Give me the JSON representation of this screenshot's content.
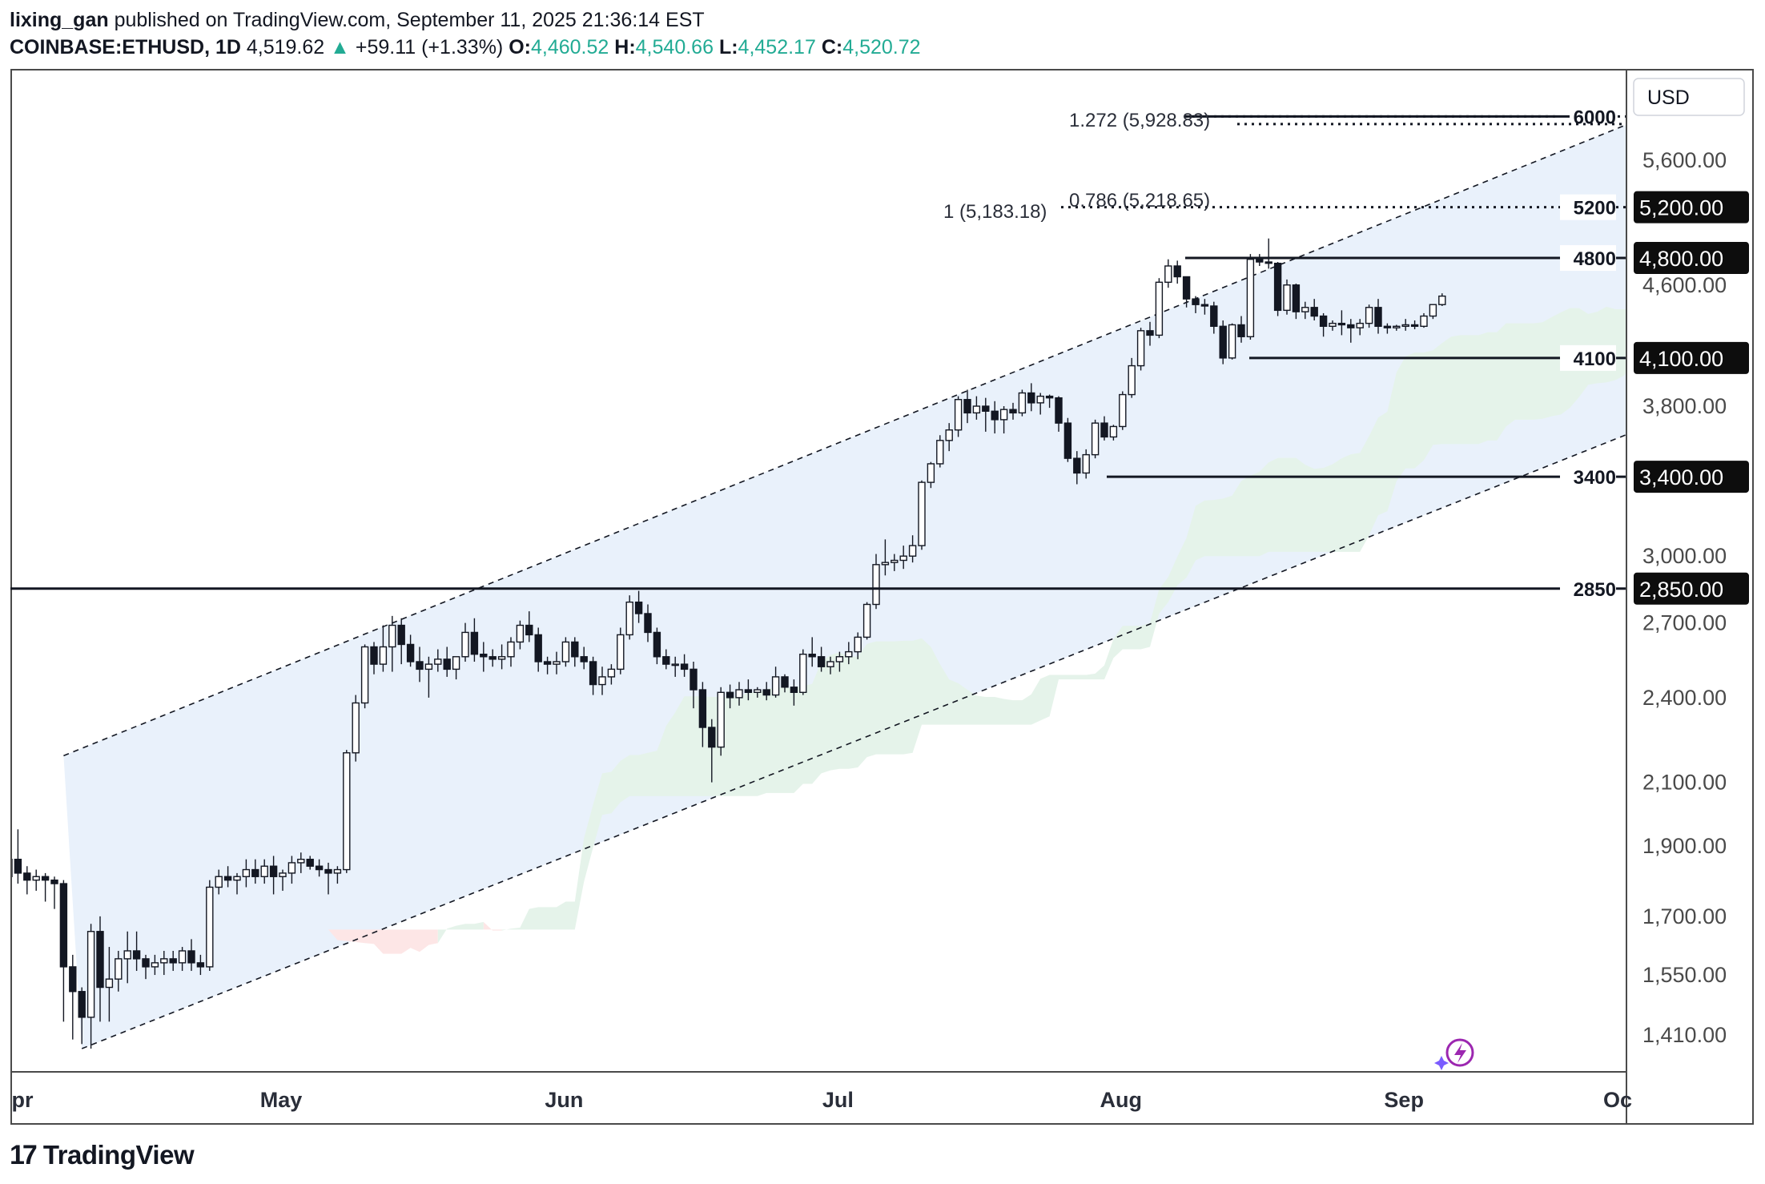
{
  "header": {
    "author": "lixing_gan",
    "published": "published on TradingView.com, September 11, 2025 21:36:14 EST",
    "symbol": "COINBASE:ETHUSD, 1D",
    "last": "4,519.62",
    "change_arrow": "▲",
    "change": "+59.11 (+1.33%)",
    "o_label": "O:",
    "o_value": "4,460.52",
    "h_label": "H:",
    "h_value": "4,540.66",
    "l_label": "L:",
    "l_value": "4,452.17",
    "c_label": "C:",
    "c_value": "4,520.72"
  },
  "footer": {
    "brand": "TradingView",
    "logo_icon": "tradingview-logo-icon"
  },
  "colors": {
    "up": "#22ab94",
    "candle_up_fill": "#ffffff",
    "candle_down_fill": "#131722",
    "channel_fill": "#e8f0fb",
    "cloud_bear": "#fde6e6",
    "cloud_bull": "#e5f3ea",
    "badge_bg": "#0d0d0d",
    "text": "#131722"
  },
  "chart_data": {
    "type": "candlestick",
    "symbol": "COINBASE:ETHUSD",
    "interval": "1D",
    "currency_label": "USD",
    "y_axis_ticks": [
      "5,600.00",
      "4,600.00",
      "3,800.00",
      "3,000.00",
      "2,700.00",
      "2,400.00",
      "2,100.00",
      "1,900.00",
      "1,700.00",
      "1,550.00",
      "1,410.00"
    ],
    "x_axis_ticks": [
      "pr",
      "May",
      "Jun",
      "Jul",
      "Aug",
      "Sep",
      "Oc"
    ],
    "horizontal_levels": [
      {
        "value": 6000,
        "label": "6000",
        "style": "dotted"
      },
      {
        "value": 5200,
        "label": "5200",
        "style": "dotted",
        "badge": "5,200.00"
      },
      {
        "value": 4800,
        "label": "4800",
        "style": "solid",
        "badge": "4,800.00"
      },
      {
        "value": 4100,
        "label": "4100",
        "style": "solid",
        "badge": "4,100.00"
      },
      {
        "value": 3400,
        "label": "3400",
        "style": "solid",
        "badge": "3,400.00"
      },
      {
        "value": 2850,
        "label": "2850",
        "style": "solid",
        "badge": "2,850.00"
      }
    ],
    "fib_labels": [
      {
        "text": "1.272 (5,928.83)",
        "value": 5928.83
      },
      {
        "text": "1 (5,183.18)",
        "value": 5183.18
      },
      {
        "text": "0.786 (5,218.65)",
        "value": 5218.65
      }
    ],
    "channel": {
      "upper": [
        [
          "Apr 7",
          2190
        ],
        [
          "Sep 26",
          5950
        ]
      ],
      "lower": [
        [
          "Apr 9",
          1380
        ],
        [
          "Sep 26",
          3650
        ]
      ]
    },
    "candles": [
      [
        1810,
        1870,
        1770,
        1860
      ],
      [
        1860,
        1950,
        1790,
        1820
      ],
      [
        1820,
        1840,
        1760,
        1800
      ],
      [
        1800,
        1830,
        1770,
        1810
      ],
      [
        1810,
        1820,
        1740,
        1800
      ],
      [
        1800,
        1810,
        1720,
        1790
      ],
      [
        1790,
        1800,
        1440,
        1570
      ],
      [
        1570,
        1600,
        1400,
        1510
      ],
      [
        1510,
        1520,
        1390,
        1450
      ],
      [
        1450,
        1680,
        1380,
        1660
      ],
      [
        1660,
        1700,
        1440,
        1520
      ],
      [
        1520,
        1620,
        1440,
        1540
      ],
      [
        1540,
        1610,
        1510,
        1590
      ],
      [
        1590,
        1660,
        1530,
        1610
      ],
      [
        1610,
        1660,
        1560,
        1590
      ],
      [
        1590,
        1600,
        1540,
        1570
      ],
      [
        1570,
        1600,
        1550,
        1580
      ],
      [
        1580,
        1610,
        1550,
        1590
      ],
      [
        1590,
        1610,
        1560,
        1580
      ],
      [
        1580,
        1620,
        1560,
        1610
      ],
      [
        1610,
        1640,
        1560,
        1580
      ],
      [
        1580,
        1600,
        1550,
        1570
      ],
      [
        1570,
        1800,
        1560,
        1780
      ],
      [
        1780,
        1830,
        1760,
        1810
      ],
      [
        1810,
        1840,
        1780,
        1800
      ],
      [
        1800,
        1820,
        1760,
        1810
      ],
      [
        1810,
        1860,
        1780,
        1830
      ],
      [
        1830,
        1860,
        1790,
        1810
      ],
      [
        1810,
        1860,
        1790,
        1840
      ],
      [
        1840,
        1870,
        1760,
        1810
      ],
      [
        1810,
        1830,
        1770,
        1820
      ],
      [
        1820,
        1870,
        1790,
        1850
      ],
      [
        1850,
        1880,
        1820,
        1860
      ],
      [
        1860,
        1870,
        1830,
        1840
      ],
      [
        1840,
        1860,
        1810,
        1830
      ],
      [
        1830,
        1850,
        1760,
        1820
      ],
      [
        1820,
        1840,
        1790,
        1830
      ],
      [
        1830,
        2210,
        1820,
        2200
      ],
      [
        2200,
        2410,
        2170,
        2380
      ],
      [
        2380,
        2610,
        2360,
        2600
      ],
      [
        2600,
        2620,
        2490,
        2530
      ],
      [
        2530,
        2690,
        2500,
        2600
      ],
      [
        2600,
        2730,
        2500,
        2690
      ],
      [
        2690,
        2720,
        2530,
        2610
      ],
      [
        2610,
        2650,
        2520,
        2540
      ],
      [
        2540,
        2600,
        2460,
        2510
      ],
      [
        2510,
        2560,
        2400,
        2530
      ],
      [
        2530,
        2590,
        2500,
        2550
      ],
      [
        2550,
        2600,
        2480,
        2510
      ],
      [
        2510,
        2560,
        2470,
        2560
      ],
      [
        2560,
        2700,
        2540,
        2660
      ],
      [
        2660,
        2720,
        2540,
        2570
      ],
      [
        2570,
        2620,
        2500,
        2560
      ],
      [
        2560,
        2590,
        2520,
        2550
      ],
      [
        2550,
        2610,
        2510,
        2560
      ],
      [
        2560,
        2640,
        2520,
        2620
      ],
      [
        2620,
        2710,
        2590,
        2690
      ],
      [
        2690,
        2750,
        2620,
        2650
      ],
      [
        2650,
        2680,
        2500,
        2540
      ],
      [
        2540,
        2560,
        2490,
        2530
      ],
      [
        2530,
        2580,
        2490,
        2540
      ],
      [
        2540,
        2640,
        2520,
        2620
      ],
      [
        2620,
        2640,
        2520,
        2560
      ],
      [
        2560,
        2600,
        2510,
        2540
      ],
      [
        2540,
        2560,
        2410,
        2450
      ],
      [
        2450,
        2520,
        2410,
        2480
      ],
      [
        2480,
        2530,
        2450,
        2510
      ],
      [
        2510,
        2680,
        2490,
        2650
      ],
      [
        2650,
        2820,
        2630,
        2790
      ],
      [
        2790,
        2840,
        2700,
        2740
      ],
      [
        2740,
        2780,
        2620,
        2660
      ],
      [
        2660,
        2680,
        2530,
        2560
      ],
      [
        2560,
        2590,
        2510,
        2530
      ],
      [
        2530,
        2560,
        2480,
        2530
      ],
      [
        2530,
        2570,
        2480,
        2510
      ],
      [
        2510,
        2540,
        2360,
        2430
      ],
      [
        2430,
        2460,
        2220,
        2290
      ],
      [
        2290,
        2320,
        2100,
        2220
      ],
      [
        2220,
        2440,
        2190,
        2420
      ],
      [
        2420,
        2450,
        2360,
        2400
      ],
      [
        2400,
        2460,
        2370,
        2430
      ],
      [
        2430,
        2470,
        2390,
        2420
      ],
      [
        2420,
        2440,
        2400,
        2430
      ],
      [
        2430,
        2460,
        2390,
        2410
      ],
      [
        2410,
        2520,
        2400,
        2480
      ],
      [
        2480,
        2490,
        2420,
        2440
      ],
      [
        2440,
        2470,
        2370,
        2420
      ],
      [
        2420,
        2590,
        2410,
        2570
      ],
      [
        2570,
        2640,
        2520,
        2560
      ],
      [
        2560,
        2600,
        2500,
        2520
      ],
      [
        2520,
        2560,
        2490,
        2540
      ],
      [
        2540,
        2580,
        2500,
        2560
      ],
      [
        2560,
        2620,
        2530,
        2580
      ],
      [
        2580,
        2660,
        2550,
        2640
      ],
      [
        2640,
        2790,
        2630,
        2780
      ],
      [
        2780,
        3010,
        2760,
        2960
      ],
      [
        2960,
        3080,
        2910,
        2970
      ],
      [
        2970,
        3010,
        2930,
        2980
      ],
      [
        2980,
        3050,
        2940,
        3000
      ],
      [
        3000,
        3100,
        2970,
        3050
      ],
      [
        3050,
        3380,
        3030,
        3370
      ],
      [
        3370,
        3480,
        3340,
        3470
      ],
      [
        3470,
        3630,
        3450,
        3600
      ],
      [
        3600,
        3700,
        3540,
        3660
      ],
      [
        3660,
        3860,
        3620,
        3840
      ],
      [
        3840,
        3900,
        3700,
        3760
      ],
      [
        3760,
        3860,
        3720,
        3800
      ],
      [
        3800,
        3850,
        3650,
        3770
      ],
      [
        3770,
        3830,
        3640,
        3720
      ],
      [
        3720,
        3800,
        3640,
        3780
      ],
      [
        3780,
        3820,
        3720,
        3760
      ],
      [
        3760,
        3900,
        3740,
        3880
      ],
      [
        3880,
        3940,
        3770,
        3820
      ],
      [
        3820,
        3880,
        3750,
        3860
      ],
      [
        3860,
        3870,
        3790,
        3850
      ],
      [
        3850,
        3860,
        3650,
        3700
      ],
      [
        3700,
        3730,
        3480,
        3500
      ],
      [
        3500,
        3540,
        3360,
        3420
      ],
      [
        3420,
        3550,
        3390,
        3520
      ],
      [
        3520,
        3720,
        3500,
        3700
      ],
      [
        3700,
        3740,
        3600,
        3620
      ],
      [
        3620,
        3690,
        3600,
        3680
      ],
      [
        3680,
        3890,
        3660,
        3870
      ],
      [
        3870,
        4100,
        3850,
        4050
      ],
      [
        4050,
        4300,
        4020,
        4280
      ],
      [
        4280,
        4340,
        4180,
        4250
      ],
      [
        4250,
        4650,
        4230,
        4620
      ],
      [
        4620,
        4790,
        4580,
        4740
      ],
      [
        4740,
        4780,
        4610,
        4660
      ],
      [
        4660,
        4660,
        4440,
        4500
      ],
      [
        4500,
        4520,
        4400,
        4460
      ],
      [
        4460,
        4500,
        4390,
        4450
      ],
      [
        4450,
        4480,
        4260,
        4310
      ],
      [
        4310,
        4350,
        4060,
        4100
      ],
      [
        4100,
        4330,
        4090,
        4320
      ],
      [
        4320,
        4380,
        4200,
        4240
      ],
      [
        4240,
        4830,
        4220,
        4790
      ],
      [
        4790,
        4830,
        4740,
        4770
      ],
      [
        4770,
        4950,
        4720,
        4760
      ],
      [
        4760,
        4770,
        4380,
        4420
      ],
      [
        4420,
        4640,
        4390,
        4600
      ],
      [
        4600,
        4610,
        4360,
        4410
      ],
      [
        4410,
        4480,
        4360,
        4440
      ],
      [
        4440,
        4500,
        4350,
        4380
      ],
      [
        4380,
        4400,
        4240,
        4310
      ],
      [
        4310,
        4350,
        4280,
        4330
      ],
      [
        4330,
        4420,
        4250,
        4320
      ],
      [
        4320,
        4360,
        4200,
        4300
      ],
      [
        4300,
        4360,
        4250,
        4330
      ],
      [
        4330,
        4460,
        4300,
        4440
      ],
      [
        4440,
        4500,
        4260,
        4310
      ],
      [
        4310,
        4330,
        4260,
        4300
      ],
      [
        4300,
        4320,
        4280,
        4310
      ],
      [
        4310,
        4360,
        4280,
        4320
      ],
      [
        4320,
        4350,
        4290,
        4310
      ],
      [
        4310,
        4400,
        4300,
        4380
      ],
      [
        4380,
        4460,
        4360,
        4460
      ],
      [
        4460,
        4540,
        4450,
        4520
      ]
    ]
  }
}
